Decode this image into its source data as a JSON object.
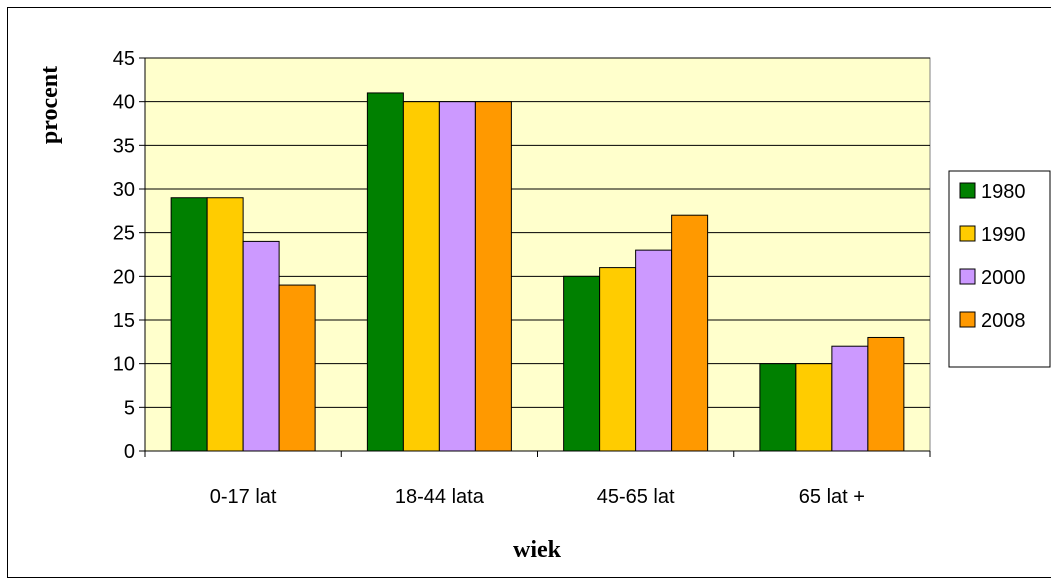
{
  "chart_data": {
    "type": "bar",
    "categories": [
      "0-17 lat",
      "18-44 lata",
      "45-65 lat",
      "65 lat +"
    ],
    "series": [
      {
        "name": "1980",
        "color": "#008000",
        "values": [
          29,
          41,
          20,
          10
        ]
      },
      {
        "name": "1990",
        "color": "#ffcc00",
        "values": [
          29,
          40,
          21,
          10
        ]
      },
      {
        "name": "2000",
        "color": "#cc99ff",
        "values": [
          24,
          40,
          23,
          12
        ]
      },
      {
        "name": "2008",
        "color": "#ff9900",
        "values": [
          19,
          40,
          27,
          13
        ]
      }
    ],
    "title": "",
    "xlabel": "wiek",
    "ylabel": "procent",
    "ylim": [
      0,
      45
    ],
    "yticks": [
      "0",
      "5",
      "10",
      "15",
      "20",
      "25",
      "30",
      "35",
      "40",
      "45"
    ],
    "grid": true,
    "plot_background": "#ffffcc",
    "legend_position": "right"
  }
}
